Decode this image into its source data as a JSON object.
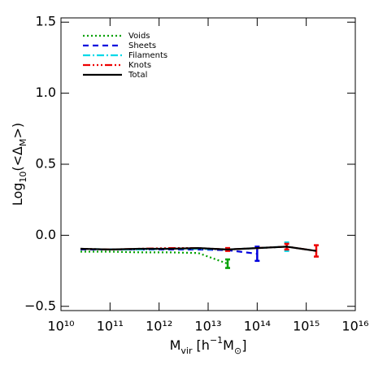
{
  "chart_data": {
    "type": "line",
    "ylabel": [
      "Log",
      "10",
      "(<Δ",
      "M",
      ">)"
    ],
    "xlabel": [
      "M",
      "vir",
      " [h",
      "−1",
      "M",
      "⊙",
      "]"
    ],
    "x": [
      25000000000,
      100000000000,
      400000000000,
      1600000000000,
      6300000000000,
      25000000000000,
      100000000000000,
      400000000000000,
      1600000000000000
    ],
    "xscale": "log",
    "xlim": [
      10000000000,
      10000000000000000
    ],
    "xticks": [
      {
        "value": 10000000000,
        "label": "10¹⁰"
      },
      {
        "value": 100000000000,
        "label": "10¹¹"
      },
      {
        "value": 1000000000000,
        "label": "10¹²"
      },
      {
        "value": 10000000000000,
        "label": "10¹³"
      },
      {
        "value": 100000000000000,
        "label": "10¹⁴"
      },
      {
        "value": 1000000000000000,
        "label": "10¹⁵"
      },
      {
        "value": 10000000000000000,
        "label": "10¹⁶"
      }
    ],
    "ylim": [
      -0.53,
      1.53
    ],
    "yticks": [
      {
        "value": -0.5,
        "label": "−0.5"
      },
      {
        "value": 0,
        "label": "0.0"
      },
      0.5,
      {
        "value": 1,
        "label": "1.0"
      },
      1.5
    ],
    "legend": "upper left",
    "series": [
      {
        "name": "Voids",
        "color": "#00a000",
        "dash": "2 3",
        "values": [
          -0.115,
          -0.115,
          -0.12,
          -0.12,
          -0.125,
          -0.2,
          null,
          null,
          null
        ],
        "errors": [
          null,
          null,
          null,
          null,
          null,
          0.03,
          null,
          null,
          null
        ]
      },
      {
        "name": "Sheets",
        "color": "#0000dd",
        "dash": "7 5",
        "values": [
          -0.1,
          -0.1,
          -0.1,
          -0.1,
          -0.1,
          -0.105,
          -0.13,
          null,
          null
        ],
        "errors": [
          null,
          null,
          null,
          null,
          null,
          null,
          0.05,
          null,
          null
        ]
      },
      {
        "name": "Filaments",
        "color": "#00d8e8",
        "dash": "9 3 2 3",
        "values": [
          -0.095,
          -0.1,
          -0.1,
          -0.095,
          -0.095,
          -0.1,
          -0.09,
          -0.08,
          null
        ],
        "errors": [
          null,
          null,
          null,
          null,
          null,
          null,
          null,
          0.03,
          null
        ]
      },
      {
        "name": "Knots",
        "color": "#ee0000",
        "dash": "9 3 2 3 2 3 2 3",
        "values": [
          -0.095,
          -0.1,
          -0.095,
          -0.09,
          -0.09,
          -0.1,
          -0.09,
          -0.08,
          -0.11
        ],
        "errors": [
          null,
          null,
          null,
          null,
          null,
          0.01,
          null,
          0.02,
          0.04
        ]
      },
      {
        "name": "Total",
        "color": "#000000",
        "dash": "none",
        "values": [
          -0.095,
          -0.1,
          -0.095,
          -0.095,
          -0.09,
          -0.1,
          -0.09,
          -0.08,
          -0.11
        ],
        "errors": [
          null,
          null,
          null,
          null,
          null,
          null,
          null,
          null,
          null
        ]
      }
    ]
  }
}
